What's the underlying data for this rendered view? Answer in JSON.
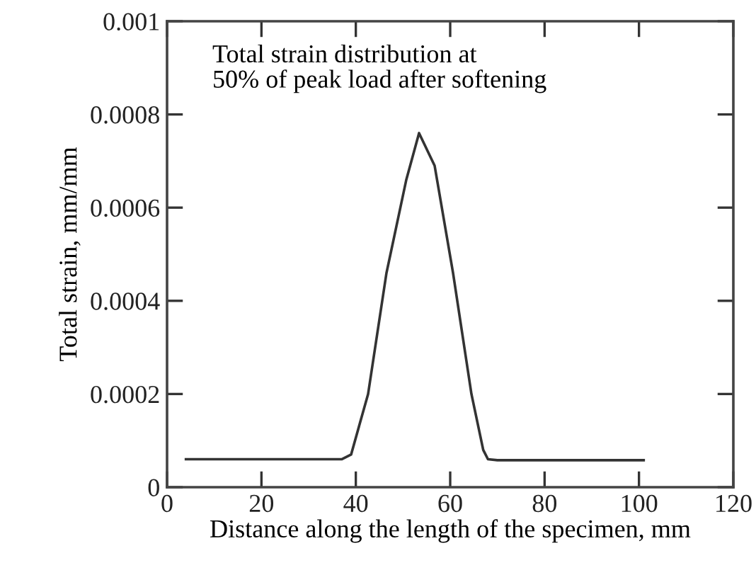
{
  "chart_data": {
    "type": "line",
    "xlabel": "Distance along the length of the specimen, mm",
    "ylabel": "Total strain, mm/mm",
    "annotations": [
      "Total strain distribution at\n50% of peak load after softening"
    ],
    "series": [
      {
        "color": "#333333",
        "x": [
          4,
          20,
          37,
          39,
          42.6,
          46.5,
          50.7,
          53.4,
          56.7,
          60.6,
          64.5,
          67,
          68,
          70,
          85,
          101
        ],
        "values": [
          6e-05,
          6e-05,
          6e-05,
          7e-05,
          0.0002,
          0.00046,
          0.00066,
          0.00076,
          0.00069,
          0.00046,
          0.0002,
          8e-05,
          6e-05,
          5.8e-05,
          5.8e-05,
          5.8e-05
        ]
      }
    ],
    "xlim": [
      0,
      120
    ],
    "xticks": [
      0,
      20,
      40,
      60,
      80,
      100,
      120
    ],
    "ylim": [
      0,
      0.001
    ],
    "yticks": [
      0,
      0.0002,
      0.0004,
      0.0006,
      0.0008,
      0.001
    ],
    "grid": false,
    "legend": false,
    "marker": "none",
    "line_style": "solid"
  }
}
